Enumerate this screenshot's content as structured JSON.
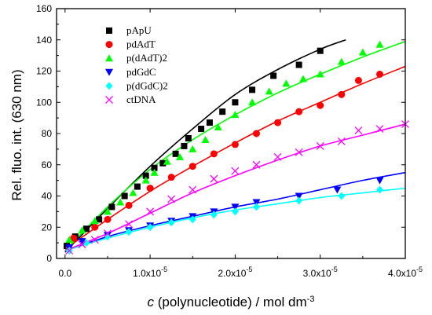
{
  "chart_data": {
    "type": "scatter",
    "xlabel": {
      "italic": "c",
      "pre": " (polynucleotide) / mol dm",
      "sup": "-3"
    },
    "ylabel": "Rel. fluo. int. (630 nm)",
    "xlim": [
      -1e-06,
      4e-05
    ],
    "ylim": [
      0,
      160
    ],
    "xticks": [
      {
        "value": 0,
        "base": "0.0",
        "exp": ""
      },
      {
        "value": 1e-05,
        "base": "1.0x10",
        "exp": "-5"
      },
      {
        "value": 2e-05,
        "base": "2.0x10",
        "exp": "-5"
      },
      {
        "value": 3e-05,
        "base": "3.0x10",
        "exp": "-5"
      },
      {
        "value": 4e-05,
        "base": "4.0x10",
        "exp": "-5"
      }
    ],
    "yticks": [
      {
        "value": 0,
        "label": "0"
      },
      {
        "value": 20,
        "label": "20"
      },
      {
        "value": 40,
        "label": "40"
      },
      {
        "value": 60,
        "label": "60"
      },
      {
        "value": 80,
        "label": "80"
      },
      {
        "value": 100,
        "label": "100"
      },
      {
        "value": 120,
        "label": "120"
      },
      {
        "value": 140,
        "label": "140"
      },
      {
        "value": 160,
        "label": "160"
      }
    ],
    "legend_position": "top-left",
    "series": [
      {
        "name": "pApU",
        "marker": "square",
        "color": "#000000",
        "x": [
          2e-07,
          1.2e-06,
          2.5e-06,
          4e-06,
          5.5e-06,
          7e-06,
          8.5e-06,
          9.5e-06,
          1.05e-05,
          1.15e-05,
          1.3e-05,
          1.4e-05,
          1.45e-05,
          1.6e-05,
          1.7e-05,
          1.85e-05,
          2e-05,
          2.2e-05,
          2.45e-05,
          2.75e-05,
          3e-05
        ],
        "y": [
          8,
          14,
          19,
          25,
          33,
          40,
          46,
          53,
          58,
          61,
          67,
          72,
          77,
          83,
          87,
          94,
          100,
          108,
          117,
          124,
          133
        ],
        "fit": {
          "x": [
            0,
            5e-06,
            1e-05,
            1.5e-05,
            2e-05,
            2.5e-05,
            3e-05,
            3.3e-05
          ],
          "y": [
            4,
            32,
            59,
            83,
            105,
            121,
            134,
            140
          ]
        }
      },
      {
        "name": "pdAdT",
        "marker": "circle",
        "color": "#ff0000",
        "x": [
          1e-06,
          3.5e-06,
          5e-06,
          7.5e-06,
          1e-05,
          1.25e-05,
          1.5e-05,
          1.75e-05,
          2e-05,
          2.25e-05,
          2.5e-05,
          2.75e-05,
          3e-05,
          3.25e-05,
          3.45e-05,
          3.7e-05
        ],
        "y": [
          13,
          20,
          25,
          34,
          45,
          52,
          59,
          67,
          73,
          80,
          87,
          94,
          98,
          105,
          114,
          118
        ],
        "fit": {
          "x": [
            0,
            5e-06,
            1e-05,
            1.5e-05,
            2e-05,
            2.5e-05,
            3e-05,
            3.5e-05,
            4e-05
          ],
          "y": [
            6,
            25,
            43,
            59,
            74,
            88,
            100,
            112,
            123
          ]
        }
      },
      {
        "name": "p(dAdT)2",
        "marker": "triangle-up",
        "color": "#00ff00",
        "x": [
          5e-07,
          2e-06,
          3.5e-06,
          5e-06,
          6.5e-06,
          8e-06,
          9.5e-06,
          1.05e-05,
          1.2e-05,
          1.35e-05,
          1.5e-05,
          1.65e-05,
          1.8e-05,
          2e-05,
          2.2e-05,
          2.4e-05,
          2.6e-05,
          2.8e-05,
          3e-05,
          3.25e-05,
          3.5e-05,
          3.7e-05
        ],
        "y": [
          12,
          18,
          24,
          30,
          36,
          42,
          50,
          55,
          62,
          65,
          70,
          76,
          84,
          92,
          100,
          107,
          112,
          115,
          118,
          126,
          132,
          137
        ],
        "fit": {
          "x": [
            0,
            5e-06,
            1e-05,
            1.5e-05,
            2e-05,
            2.5e-05,
            3e-05,
            3.5e-05,
            4e-05
          ],
          "y": [
            5,
            33,
            57,
            76,
            92,
            106,
            118,
            129,
            139
          ]
        }
      },
      {
        "name": "pdGdC",
        "marker": "triangle-down",
        "color": "#0000ff",
        "x": [
          5e-07,
          2e-06,
          5e-06,
          7.5e-06,
          1e-05,
          1.25e-05,
          1.5e-05,
          1.75e-05,
          2e-05,
          2.25e-05,
          2.75e-05,
          3.2e-05,
          3.7e-05
        ],
        "y": [
          7,
          11,
          15,
          18,
          21,
          24,
          27,
          30,
          33,
          36,
          40,
          44,
          50
        ],
        "fit": {
          "x": [
            0,
            5e-06,
            1e-05,
            1.5e-05,
            2e-05,
            2.5e-05,
            3e-05,
            3.5e-05,
            4e-05
          ],
          "y": [
            5,
            14,
            21,
            27,
            33,
            38,
            44,
            50,
            55
          ]
        }
      },
      {
        "name": "p(dGdC)2",
        "marker": "diamond",
        "color": "#00ffff",
        "x": [
          5e-07,
          2.5e-06,
          5e-06,
          7.5e-06,
          1e-05,
          1.25e-05,
          1.5e-05,
          1.75e-05,
          2e-05,
          2.25e-05,
          2.75e-05,
          3.25e-05,
          3.7e-05
        ],
        "y": [
          5,
          10,
          14,
          17,
          20,
          23,
          25,
          28,
          30,
          33,
          37,
          40,
          44
        ],
        "fit": {
          "x": [
            0,
            5e-06,
            1e-05,
            1.5e-05,
            2e-05,
            2.5e-05,
            3e-05,
            3.5e-05,
            4e-05
          ],
          "y": [
            5,
            13,
            20,
            26,
            31,
            35,
            39,
            42,
            45
          ]
        }
      },
      {
        "name": "ctDNA",
        "marker": "cross",
        "color": "#ff00ff",
        "x": [
          5e-07,
          2e-06,
          3.5e-06,
          5e-06,
          7.5e-06,
          1e-05,
          1.25e-05,
          1.5e-05,
          1.75e-05,
          2e-05,
          2.25e-05,
          2.5e-05,
          2.75e-05,
          3e-05,
          3.25e-05,
          3.45e-05,
          3.7e-05,
          4e-05
        ],
        "y": [
          5,
          9,
          12,
          16,
          22,
          30,
          38,
          44,
          51,
          56,
          60,
          65,
          68,
          72,
          75,
          82,
          83,
          86
        ],
        "fit": {
          "x": [
            0,
            5e-06,
            1e-05,
            1.5e-05,
            2e-05,
            2.5e-05,
            3e-05,
            3.5e-05,
            4e-05
          ],
          "y": [
            5,
            16,
            29,
            42,
            53,
            63,
            72,
            79,
            86
          ]
        }
      }
    ]
  }
}
